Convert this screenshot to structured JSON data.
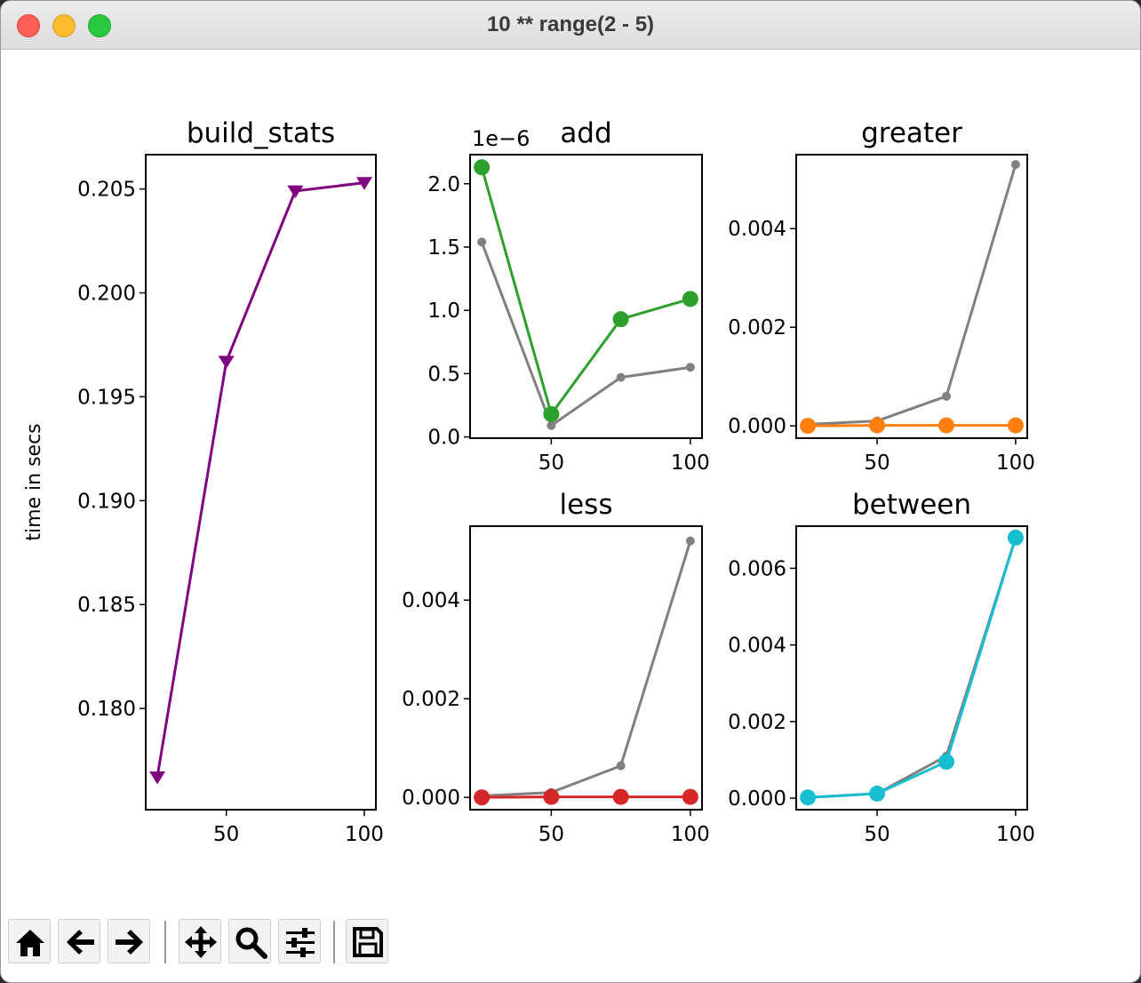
{
  "window": {
    "title": "10 ** range(2 - 5)"
  },
  "toolbar": {
    "buttons": [
      {
        "icon": "home-icon"
      },
      {
        "icon": "back-arrow-icon"
      },
      {
        "icon": "forward-arrow-icon"
      },
      {
        "icon": "pan-move-icon"
      },
      {
        "icon": "zoom-magnifier-icon"
      },
      {
        "icon": "configure-subplots-icon"
      },
      {
        "icon": "save-floppy-icon"
      }
    ]
  },
  "chart_data": [
    {
      "type": "line",
      "title": "build_stats",
      "ylabel": "time in secs",
      "xlabel": "",
      "xlim": [
        20.8,
        104.2
      ],
      "ylim": [
        0.17513,
        0.20665
      ],
      "xticks": [
        50,
        100
      ],
      "yticks": [
        0.18,
        0.185,
        0.19,
        0.195,
        0.2,
        0.205
      ],
      "yticklabels": [
        "0.180",
        "0.185",
        "0.190",
        "0.195",
        "0.200",
        "0.205"
      ],
      "series": [
        {
          "color": "#800080",
          "marker": "triangle-down",
          "x": [
            25,
            50,
            75,
            100
          ],
          "values": [
            0.1767,
            0.1967,
            0.2049,
            0.2053
          ]
        }
      ]
    },
    {
      "type": "line",
      "title": "add",
      "offset_text": "1e−6",
      "xlim": [
        20.8,
        104.2
      ],
      "ylim": [
        -0.01,
        2.23
      ],
      "xticks": [
        50,
        100
      ],
      "yticks": [
        0.0,
        0.5,
        1.0,
        1.5,
        2.0
      ],
      "yticklabels": [
        "0.0",
        "0.5",
        "1.0",
        "1.5",
        "2.0"
      ],
      "series": [
        {
          "color": "#808080",
          "marker": "small-dot",
          "x": [
            25,
            50,
            75,
            100
          ],
          "values": [
            1.54,
            0.09,
            0.47,
            0.55
          ]
        },
        {
          "color": "#2ca02c",
          "marker": "circle",
          "x": [
            25,
            50,
            75,
            100
          ],
          "values": [
            2.13,
            0.18,
            0.93,
            1.09
          ]
        }
      ]
    },
    {
      "type": "line",
      "title": "greater",
      "xlim": [
        20.8,
        104.2
      ],
      "ylim": [
        -0.00025,
        0.0055
      ],
      "xticks": [
        50,
        100
      ],
      "yticks": [
        0.0,
        0.002,
        0.004
      ],
      "yticklabels": [
        "0.000",
        "0.002",
        "0.004"
      ],
      "series": [
        {
          "color": "#808080",
          "marker": "small-dot",
          "x": [
            25,
            50,
            75,
            100
          ],
          "values": [
            3e-05,
            0.0001,
            0.0006,
            0.0053
          ]
        },
        {
          "color": "#ff7f0e",
          "marker": "circle",
          "x": [
            25,
            50,
            75,
            100
          ],
          "values": [
            0.0,
            1e-05,
            1e-05,
            1e-05
          ]
        }
      ]
    },
    {
      "type": "line",
      "title": "less",
      "xlim": [
        20.8,
        104.2
      ],
      "ylim": [
        -0.00025,
        0.0055
      ],
      "xticks": [
        50,
        100
      ],
      "yticks": [
        0.0,
        0.002,
        0.004
      ],
      "yticklabels": [
        "0.000",
        "0.002",
        "0.004"
      ],
      "series": [
        {
          "color": "#808080",
          "marker": "small-dot",
          "x": [
            25,
            50,
            75,
            100
          ],
          "values": [
            3e-05,
            0.0001,
            0.00064,
            0.0052
          ]
        },
        {
          "color": "#d62728",
          "marker": "circle",
          "x": [
            25,
            50,
            75,
            100
          ],
          "values": [
            0.0,
            1e-05,
            1e-05,
            1e-05
          ]
        }
      ]
    },
    {
      "type": "line",
      "title": "between",
      "xlim": [
        20.8,
        104.2
      ],
      "ylim": [
        -0.0003,
        0.0071
      ],
      "xticks": [
        50,
        100
      ],
      "yticks": [
        0.0,
        0.002,
        0.004,
        0.006
      ],
      "yticklabels": [
        "0.000",
        "0.002",
        "0.004",
        "0.006"
      ],
      "series": [
        {
          "color": "#808080",
          "marker": "small-dot",
          "x": [
            25,
            50,
            75,
            100
          ],
          "values": [
            2e-05,
            0.00012,
            0.0011,
            0.0068
          ]
        },
        {
          "color": "#17becf",
          "marker": "circle",
          "x": [
            25,
            50,
            75,
            100
          ],
          "values": [
            2e-05,
            0.00012,
            0.00095,
            0.0068
          ]
        }
      ]
    }
  ]
}
